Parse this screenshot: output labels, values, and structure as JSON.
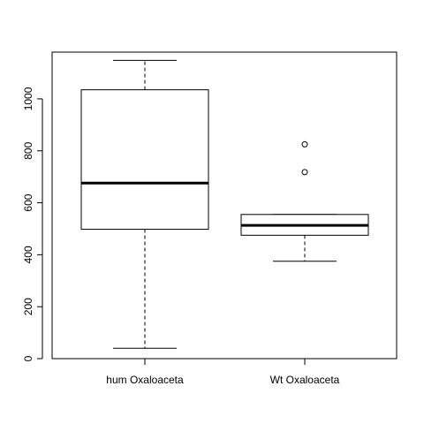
{
  "chart_data": {
    "type": "boxplot",
    "title": "",
    "xlabel": "",
    "ylabel": "",
    "ylim": [
      0,
      1180
    ],
    "yticks": [
      0,
      200,
      400,
      600,
      800,
      1000
    ],
    "grid": false,
    "categories": [
      "hum Oxaloaceta",
      "Wt Oxaloaceta"
    ],
    "boxes": [
      {
        "category": "hum Oxaloaceta",
        "whisker_low": 40,
        "q1": 498,
        "median": 676,
        "q3": 1035,
        "whisker_high": 1148,
        "outliers": []
      },
      {
        "category": "Wt Oxaloaceta",
        "whisker_low": 375,
        "q1": 475,
        "median": 513,
        "q3": 555,
        "whisker_high": 555,
        "outliers": [
          718,
          825
        ]
      }
    ]
  }
}
